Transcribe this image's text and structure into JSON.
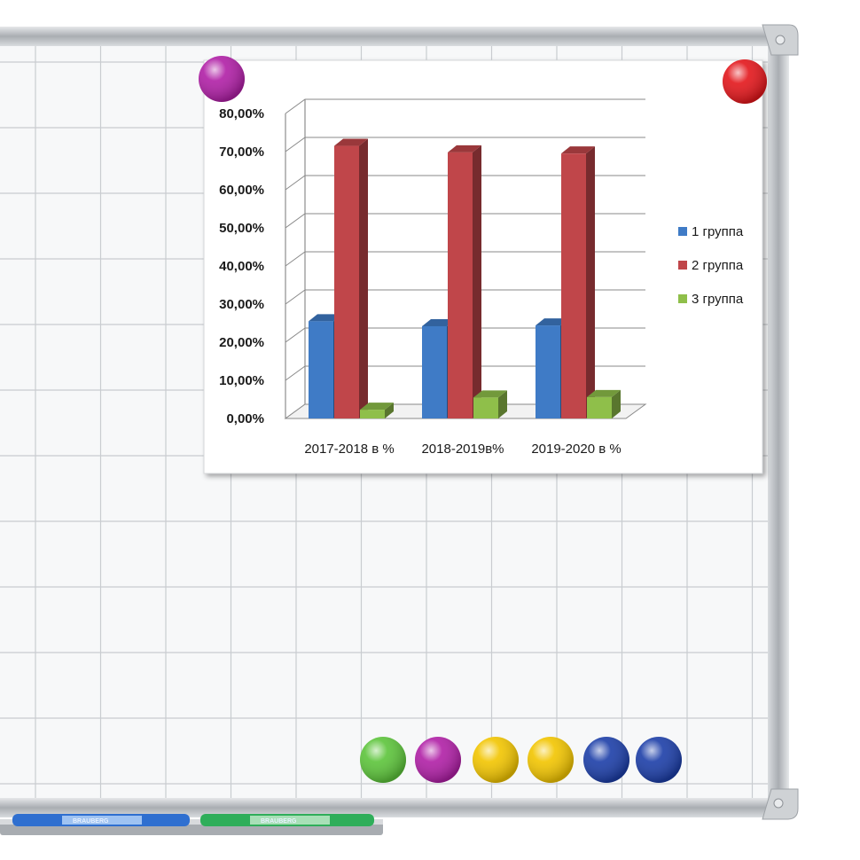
{
  "whiteboard": {
    "frame_color": "#b9bcc0",
    "surface_color": "#f7f8f9",
    "grid_color": "#c9ccd0",
    "magnets_pinned": [
      "#b01fa6",
      "#e3161b"
    ],
    "magnets_row": [
      "#5cc43a",
      "#b01fa6",
      "#f2c500",
      "#f2c500",
      "#1c3ea8",
      "#1c3ea8"
    ]
  },
  "markers": [
    {
      "brand": "BRAUBERG",
      "color": "#2f6fd0"
    },
    {
      "brand": "BRAUBERG",
      "color": "#2fae5a"
    }
  ],
  "chart_data": {
    "type": "bar",
    "style": "3d-clustered-column",
    "categories": [
      "2017-2018 в %",
      "2018-2019в%",
      "2019-2020 в %"
    ],
    "series": [
      {
        "name": "1 группа",
        "color": "#3f7bc6",
        "values": [
          25.5,
          24.2,
          24.4
        ]
      },
      {
        "name": "2 группа",
        "color": "#c0464a",
        "values": [
          71.5,
          69.8,
          69.5
        ]
      },
      {
        "name": "3 группа",
        "color": "#8fbf4a",
        "values": [
          2.3,
          5.5,
          5.6
        ]
      }
    ],
    "ylim": [
      0,
      80
    ],
    "yticks": [
      "0,00%",
      "10,00%",
      "20,00%",
      "30,00%",
      "40,00%",
      "50,00%",
      "60,00%",
      "70,00%",
      "80,00%"
    ],
    "grid": true,
    "legend_position": "right"
  }
}
